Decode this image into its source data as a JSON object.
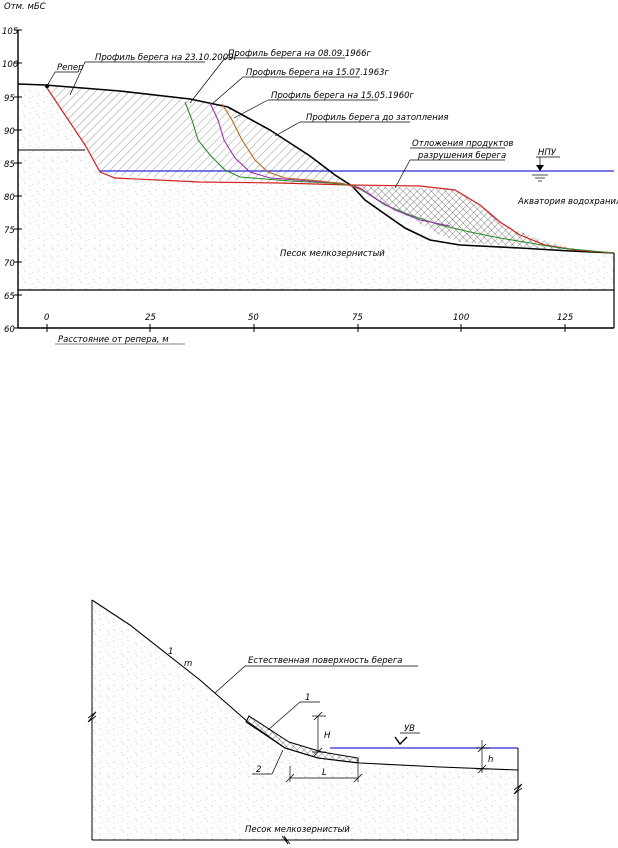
{
  "top_figure": {
    "y_axis_title": "Отм. мБС",
    "x_axis_title": "Расстояние от репера, м",
    "y_ticks": [
      "105",
      "100",
      "95",
      "90",
      "85",
      "80",
      "75",
      "70",
      "65",
      "60"
    ],
    "x_ticks": [
      "0",
      "25",
      "50",
      "75",
      "100",
      "125"
    ],
    "labels": {
      "reper": "Репер",
      "profile_2009": "Профиль берега на 23.10.2009г",
      "profile_1966": "Профиль берега на 08.09.1966г",
      "profile_1963": "Профиль берега на 15.07.1963г",
      "profile_1960": "Профиль берега на 15.05.1960г",
      "profile_before": "Профиль берега до затопления",
      "deposits_1": "Отложения продуктов",
      "deposits_2": "разрушения берега",
      "npu": "НПУ",
      "aquatory": "Акватория водохранилища",
      "sand": "Песок мелкозернистый"
    },
    "colors": {
      "water": "#2b2bd6",
      "profile_2009": "#d42020",
      "profile_1966": "#2a8a2a",
      "profile_1963": "#9b30b0",
      "profile_1960": "#b8651c",
      "profile_before": "#000000"
    }
  },
  "bottom_figure": {
    "labels": {
      "slope_1": "1",
      "slope_m": "m",
      "natural_surface": "Естественная поверхность берега",
      "item_1": "1",
      "item_2": "2",
      "H": "H",
      "L": "L",
      "UV": "УВ",
      "h": "h",
      "sand": "Песок мелкозернистый"
    },
    "colors": {
      "water": "#2b2bd6"
    }
  }
}
